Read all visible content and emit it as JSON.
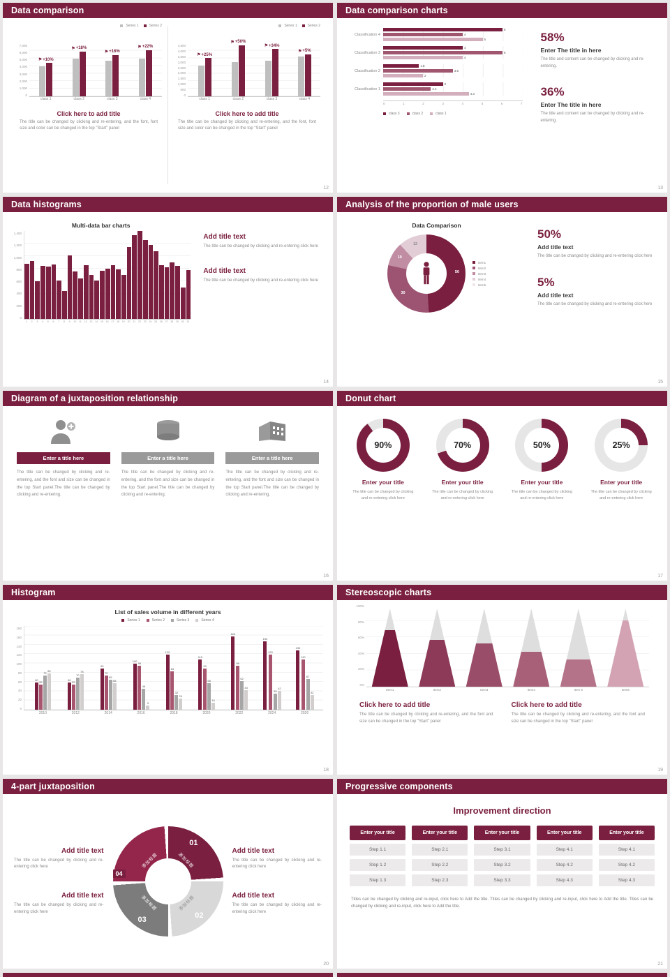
{
  "colors": {
    "accent": "#7a1f3f",
    "accent_mid": "#a0566f",
    "accent_light": "#d3aebc",
    "gray_bar": "#bfbfbf",
    "background": "#e8e6e6"
  },
  "slides": {
    "s12": {
      "title": "Data comparison",
      "page": "12",
      "legend": [
        "Series 1",
        "Series 2"
      ],
      "caption": "Click here to add title",
      "desc": "The title can be changed by clicking and re-entering, and the font, font size and color can be changed in the top \"Start\" panel",
      "chart_left": {
        "type": "bar",
        "yticks": [
          "7,000",
          "6,000",
          "5,000",
          "4,000",
          "3,000",
          "2,000",
          "1,000",
          "0"
        ],
        "ymax": 7000,
        "categories": [
          "class 1",
          "class 2",
          "class 3",
          "class 4"
        ],
        "series": [
          {
            "name": "Series 1",
            "values": [
              4000,
              5000,
              4700,
              5000
            ]
          },
          {
            "name": "Series 2",
            "values": [
              4400,
              5900,
              5450,
              6100
            ]
          }
        ],
        "annotations": [
          "+10%",
          "+18%",
          "+16%",
          "+22%"
        ]
      },
      "chart_right": {
        "type": "bar",
        "yticks": [
          "4,500",
          "4,000",
          "3,500",
          "3,000",
          "2,500",
          "2,000",
          "1,500",
          "1,000",
          "500",
          "0"
        ],
        "ymax": 4500,
        "categories": [
          "class 1",
          "class 2",
          "class 3",
          "class 4"
        ],
        "series": [
          {
            "name": "Series 1",
            "values": [
              2600,
              2900,
              3000,
              3400
            ]
          },
          {
            "name": "Series 2",
            "values": [
              3250,
              4350,
              4020,
              3570
            ]
          }
        ],
        "annotations": [
          "+25%",
          "+50%",
          "+34%",
          "+5%"
        ]
      }
    },
    "s13": {
      "title": "Data comparison charts",
      "page": "13",
      "chart": {
        "type": "bar-horizontal",
        "categories": [
          "Classification 4",
          "Classification 3",
          "Classification 2",
          "Classification 1"
        ],
        "series": [
          {
            "name": "class 3",
            "color": "#7a1f3f",
            "values": [
              6,
              4,
              1.8,
              3
            ]
          },
          {
            "name": "class 2",
            "color": "#a0566f",
            "values": [
              4,
              6,
              3.5,
              2.4
            ]
          },
          {
            "name": "class 1",
            "color": "#d3aebc",
            "values": [
              5,
              4,
              2,
              4.3
            ]
          }
        ],
        "xticks": [
          "0",
          "1",
          "2",
          "3",
          "4",
          "5",
          "6",
          "7"
        ],
        "xmax": 7
      },
      "stats": [
        {
          "pct": "58%",
          "head": "Enter The title in here",
          "body": "The title and content can be changed by clicking and re-entering."
        },
        {
          "pct": "36%",
          "head": "Enter The title in here",
          "body": "The title and content can be changed by clicking and re-entering."
        }
      ]
    },
    "s14": {
      "title": "Data histograms",
      "page": "14",
      "chart_title": "Multi-data bar charts",
      "chart": {
        "type": "bar",
        "yticks": [
          "1,400",
          "1,200",
          "1,000",
          "800",
          "600",
          "400",
          "200",
          "0"
        ],
        "ymax": 1400,
        "values": [
          880,
          920,
          600,
          850,
          830,
          870,
          610,
          450,
          1010,
          760,
          650,
          860,
          700,
          610,
          770,
          800,
          860,
          790,
          700,
          1150,
          1330,
          1400,
          1260,
          1180,
          1080,
          860,
          820,
          900,
          840,
          500,
          780
        ]
      },
      "blocks": [
        {
          "head": "Add title text",
          "body": "The title can be changed by clicking and re-entering click here"
        },
        {
          "head": "Add title text",
          "body": "The title can be changed by clicking and re-entering click here"
        }
      ]
    },
    "s15": {
      "title": "Analysis of the proportion of male users",
      "page": "15",
      "chart_title": "Data Comparison",
      "chart": {
        "type": "pie",
        "segments": [
          {
            "label": "50",
            "value": 50,
            "color": "#7a1f3f",
            "label_color": "#ffffff"
          },
          {
            "label": "30",
            "value": 30,
            "color": "#9d5472",
            "label_color": "#ffffff"
          },
          {
            "label": "10",
            "value": 10,
            "color": "#c08da2",
            "label_color": "#ffffff"
          },
          {
            "label": "12",
            "value": 12,
            "color": "#e2cdd6",
            "label_color": "#8a8a8a"
          }
        ],
        "legend": [
          "Item1",
          "Item2",
          "Item3",
          "Item4",
          "Item5"
        ],
        "legend_colors": [
          "#7a1f3f",
          "#9d5472",
          "#c08da2",
          "#e2cdd6",
          "#f0e5eb"
        ]
      },
      "stats": [
        {
          "pct": "50%",
          "head": "Add title text",
          "body": "The title can be changed by clicking and re-entering click here"
        },
        {
          "pct": "5%",
          "head": "Add title text",
          "body": "The title can be changed by clicking and re-entering click here"
        }
      ]
    },
    "s16": {
      "title": "Diagram of a juxtaposition relationship",
      "page": "16",
      "columns": [
        {
          "icon": "nurse-icon",
          "bar": "Enter a title here",
          "body": "The title can be changed by clicking and re-entering, and the font and size can be changed in the top Start panel.The title can be changed by clicking and re-entering."
        },
        {
          "icon": "database-icon",
          "bar": "Enter a title here",
          "body": "The title can be changed by clicking and re-entering, and the font and size can be changed in the top Start panel.The title can be changed by clicking and re-entering."
        },
        {
          "icon": "building-icon",
          "bar": "Enter a title here",
          "body": "The title can be changed by clicking and re-entering, and the font and size can be changed in the top Start panel.The title can be changed by clicking and re-entering."
        }
      ]
    },
    "s17": {
      "title": "Donut chart",
      "page": "17",
      "donuts": [
        {
          "pct": 90,
          "label": "90%",
          "head": "Enter your title",
          "body": "The title can be changed by clicking and re-entering click here"
        },
        {
          "pct": 70,
          "label": "70%",
          "head": "Enter your title",
          "body": "The title can be changed by clicking and re-entering click here"
        },
        {
          "pct": 50,
          "label": "50%",
          "head": "Enter your title",
          "body": "The title can be changed by clicking and re-entering click here"
        },
        {
          "pct": 25,
          "label": "25%",
          "head": "Enter your title",
          "body": "The title can be changed by clicking and re-entering click here"
        }
      ]
    },
    "s18": {
      "title": "Histogram",
      "page": "18",
      "chart_title": "List of sales volume in different years",
      "chart": {
        "type": "bar",
        "categories": [
          "2010",
          "2012",
          "2014",
          "2016",
          "2018",
          "2020",
          "2022",
          "2024",
          "2026"
        ],
        "series": [
          {
            "name": "Series 1",
            "color": "#7a1f3f",
            "values": [
              60,
              60,
              90,
              100,
              120,
              110,
              160,
              150,
              130
            ]
          },
          {
            "name": "Series 2",
            "color": "#a8566f",
            "values": [
              55,
              55,
              75,
              96,
              84,
              90,
              96,
              120,
              110
            ]
          },
          {
            "name": "Series 3",
            "color": "#a6a6a6",
            "values": [
              75,
              70,
              65,
              46,
              32,
              58,
              62,
              35,
              67
            ]
          },
          {
            "name": "Series 4",
            "color": "#d2cece",
            "values": [
              80,
              78,
              58,
              9,
              24,
              16,
              43,
              42,
              32
            ]
          }
        ],
        "yticks": [
          "180",
          "160",
          "140",
          "120",
          "100",
          "80",
          "60",
          "40",
          "20",
          "0"
        ],
        "ymax": 180
      }
    },
    "s19": {
      "title": "Stereoscopic charts",
      "page": "19",
      "chart": {
        "type": "pyramid",
        "categories": [
          "Item1",
          "Item2",
          "Item3",
          "Item4",
          "Item 5",
          "Item6"
        ],
        "fills": [
          72,
          60,
          55,
          45,
          35,
          85
        ],
        "colors": [
          "#7a1f3f",
          "#8d3a58",
          "#9a4d68",
          "#a86079",
          "#b5738a",
          "#d3a3b4"
        ],
        "yticks": [
          "100%",
          "80%",
          "60%",
          "40%",
          "20%",
          "0%"
        ]
      },
      "blocks": [
        {
          "head": "Click here to add title",
          "body": "The title can be changed by clicking and re-entering, and the font and size can be changed in the top \"Start\" panel"
        },
        {
          "head": "Click here to add title",
          "body": "The title can be changed by clicking and re-entering, and the font and size can be changed in the top \"Start\" panel"
        }
      ]
    },
    "s20": {
      "title": "4-part juxtaposition",
      "page": "20",
      "segments": [
        {
          "num": "01",
          "label": "添加标题",
          "color": "#7a1f3f"
        },
        {
          "num": "02",
          "label": "添加标题",
          "color": "#d8d8d8"
        },
        {
          "num": "03",
          "label": "添加标题",
          "color": "#7c7c7c"
        },
        {
          "num": "04",
          "label": "添加标题",
          "color": "#93264a"
        }
      ],
      "blocks": [
        {
          "head": "Add title text",
          "body": "The title can be changed by clicking and re-entering click here"
        },
        {
          "head": "Add title text",
          "body": "The title can be changed by clicking and re-entering click here"
        },
        {
          "head": "Add title text",
          "body": "The title can be changed by clicking and re-entering click here"
        },
        {
          "head": "Add title text",
          "body": "The title can be changed by clicking and re-entering click here"
        }
      ]
    },
    "s21": {
      "title": "Progressive components",
      "page": "21",
      "heading": "Improvement direction",
      "button_label": "Enter your title",
      "columns": [
        {
          "steps": [
            "Step 1.1",
            "Step 1.2",
            "Step 1.3"
          ]
        },
        {
          "steps": [
            "Step 2.1",
            "Step 2.2",
            "Step 2.3"
          ]
        },
        {
          "steps": [
            "Step 3.1",
            "Step 3.2",
            "Step 3.3"
          ]
        },
        {
          "steps": [
            "Step 4.1",
            "Step 4.2",
            "Step 4.3"
          ]
        },
        {
          "steps": [
            "Step 4.1",
            "Step 4.2",
            "Step 4.3"
          ]
        }
      ],
      "footer": "Titles can be changed by clicking and re-input, click here to Add the title. Titles can be changed by clicking and re-input, click here to Add the title. Titles can be changed by clicking and re-input, click here to Add the title."
    }
  }
}
